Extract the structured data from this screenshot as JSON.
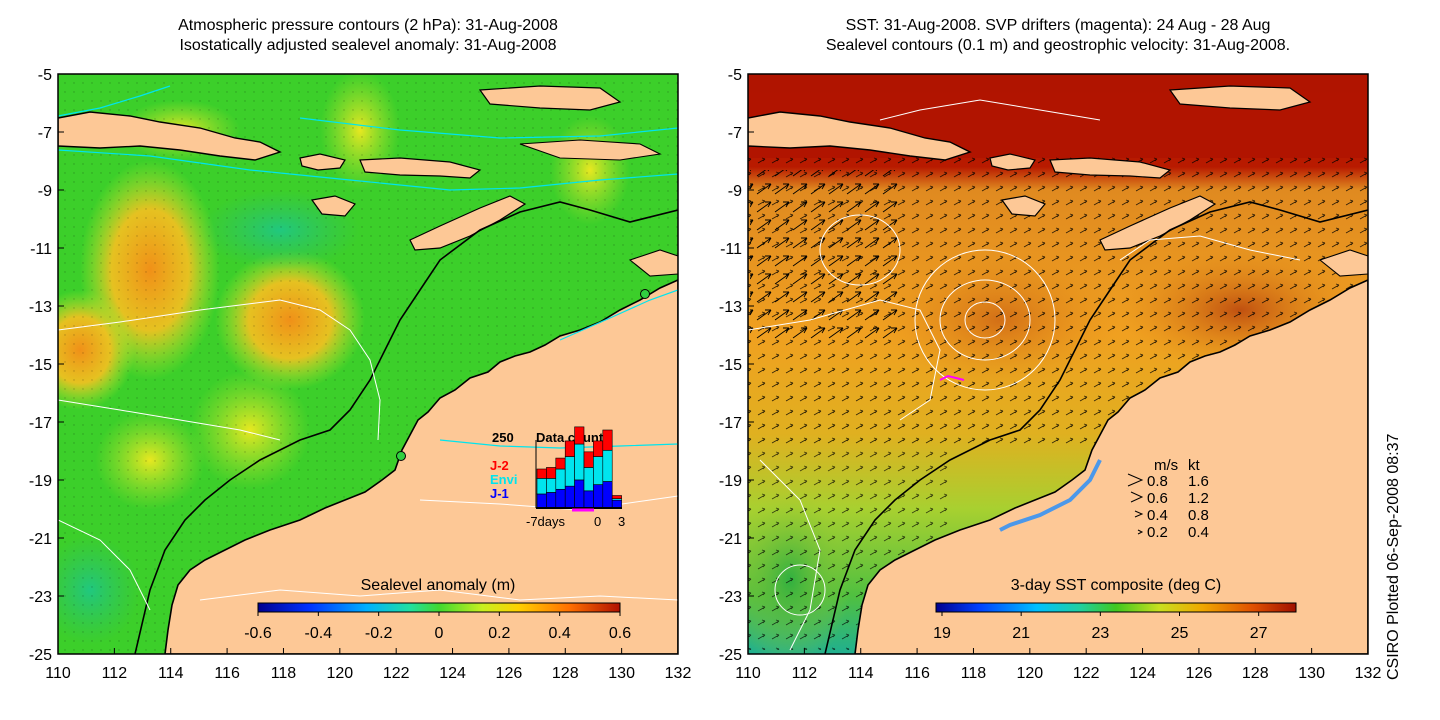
{
  "left_map": {
    "title_line1": "Atmospheric pressure contours (2 hPa): 31-Aug-2008",
    "title_line2": "Isostatically adjusted sealevel anomaly: 31-Aug-2008",
    "colorbar_label": "Sealevel anomaly (m)",
    "colorbar_ticks": [
      "-0.6",
      "-0.4",
      "-0.2",
      "0",
      "0.2",
      "0.4",
      "0.6"
    ],
    "inset": {
      "value_label": "250",
      "title": "Data count",
      "legend": [
        {
          "label": "J-2",
          "color": "#ff0000"
        },
        {
          "label": "Envi",
          "color": "#00e5ee"
        },
        {
          "label": "J-1",
          "color": "#0000ff"
        }
      ],
      "x_left": "-7days",
      "x_mid": "0",
      "x_right": "3",
      "bars": [
        {
          "j1": 0.18,
          "envi": 0.2,
          "j2": 0.12
        },
        {
          "j1": 0.2,
          "envi": 0.18,
          "j2": 0.14
        },
        {
          "j1": 0.24,
          "envi": 0.26,
          "j2": 0.14
        },
        {
          "j1": 0.28,
          "envi": 0.38,
          "j2": 0.2
        },
        {
          "j1": 0.36,
          "envi": 0.46,
          "j2": 0.22
        },
        {
          "j1": 0.22,
          "envi": 0.3,
          "j2": 0.2
        },
        {
          "j1": 0.3,
          "envi": 0.36,
          "j2": 0.2
        },
        {
          "j1": 0.34,
          "envi": 0.4,
          "j2": 0.26
        },
        {
          "j1": 0.1,
          "envi": 0.02,
          "j2": 0.04
        }
      ]
    }
  },
  "right_map": {
    "title_line1": "SST: 31-Aug-2008. SVP drifters (magenta): 24 Aug - 28 Aug",
    "title_line2": "Sealevel contours (0.1 m) and geostrophic velocity: 31-Aug-2008.",
    "colorbar_label": "3-day SST composite (deg C)",
    "colorbar_ticks": [
      "19",
      "21",
      "23",
      "25",
      "27"
    ],
    "velocity_legend": {
      "header_ms": "m/s",
      "header_kt": "kt",
      "rows": [
        {
          "ms": "0.8",
          "kt": "1.6"
        },
        {
          "ms": "0.6",
          "kt": "1.2"
        },
        {
          "ms": "0.4",
          "kt": "0.8"
        },
        {
          "ms": "0.2",
          "kt": "0.4"
        }
      ]
    }
  },
  "axes": {
    "lat_ticks": [
      "-5",
      "-7",
      "-9",
      "-11",
      "-13",
      "-15",
      "-17",
      "-19",
      "-21",
      "-23",
      "-25"
    ],
    "lon_ticks": [
      "110",
      "112",
      "114",
      "116",
      "118",
      "120",
      "122",
      "124",
      "126",
      "128",
      "130",
      "132"
    ]
  },
  "credit": "CSIRO Plotted 06-Sep-2008 08:37",
  "colors": {
    "land": "#fdc896",
    "sea_green": "#3ccf2a",
    "sst_orange": "#f0a020",
    "sst_red": "#b01800",
    "contour": "#ffffff",
    "pressure": "#00e5ee",
    "drifter": "#ff00ff"
  }
}
